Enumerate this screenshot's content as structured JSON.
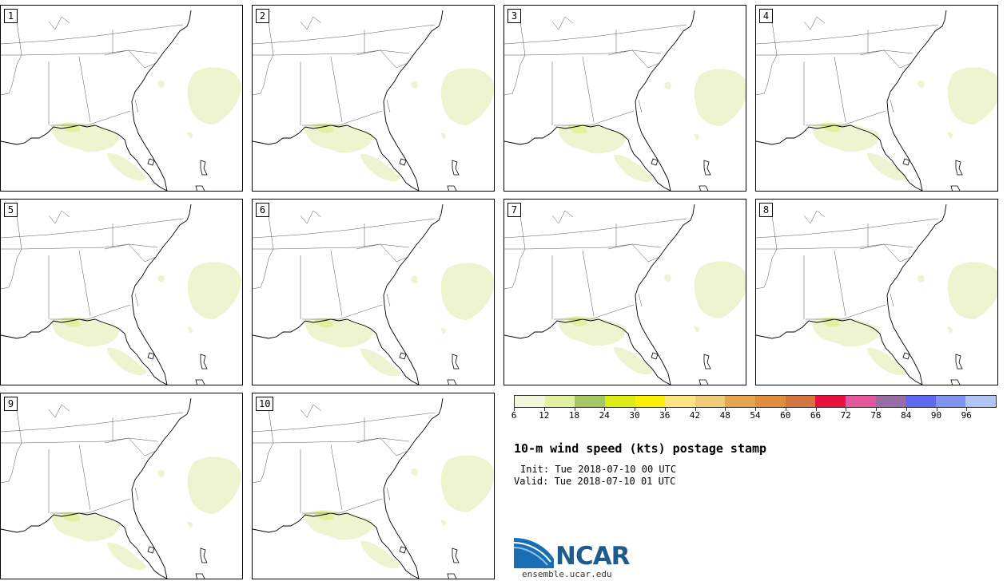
{
  "panels": [
    {
      "label": "1"
    },
    {
      "label": "2"
    },
    {
      "label": "3"
    },
    {
      "label": "4"
    },
    {
      "label": "5"
    },
    {
      "label": "6"
    },
    {
      "label": "7"
    },
    {
      "label": "8"
    },
    {
      "label": "9"
    },
    {
      "label": "10"
    }
  ],
  "colorbar": {
    "colors": [
      "#f2f7d9",
      "#e1f1a0",
      "#a5c764",
      "#dcec17",
      "#fbef06",
      "#fde584",
      "#f2cb76",
      "#e7a451",
      "#e18d3e",
      "#d4743e",
      "#e9103e",
      "#e5579d",
      "#9a6ca6",
      "#6069ed",
      "#8094f1",
      "#b1c4f6"
    ],
    "labels": [
      "6",
      "12",
      "18",
      "24",
      "30",
      "36",
      "42",
      "48",
      "54",
      "60",
      "66",
      "72",
      "78",
      "84",
      "90",
      "96"
    ]
  },
  "title": "10-m wind speed (kts) postage stamp",
  "init": "Init: Tue 2018-07-10 00 UTC",
  "valid": "Valid: Tue 2018-07-10 01 UTC",
  "logo": {
    "name": "NCAR",
    "url": "ensemble.ucar.edu"
  },
  "colors": {
    "land_fill": "#ffffff",
    "wind_fill": "#eef4d0",
    "wind_fill_strong": "#e1f1a0",
    "border": "#000000"
  }
}
